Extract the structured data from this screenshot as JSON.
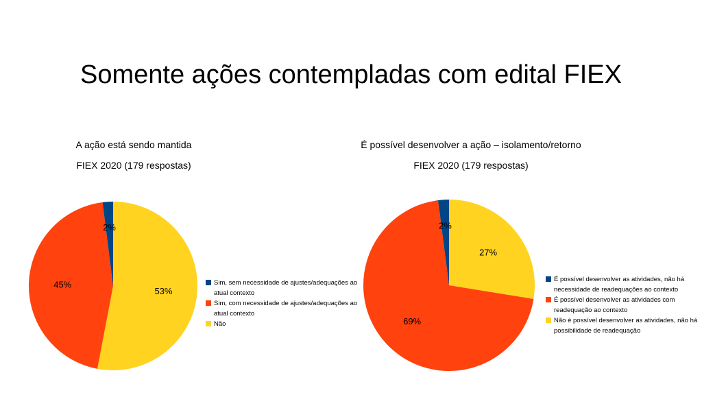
{
  "title": "Somente ações contempladas com edital FIEX",
  "chart_data": [
    {
      "type": "pie",
      "title": "A ação está sendo mantida",
      "subtitle": "FIEX 2020 (179 respostas)",
      "categories": [
        "Sim, sem necessidade de ajustes/adequações ao atual contexto",
        "Sim, com necessidade de ajustes/adequações ao atual contexto",
        "Não"
      ],
      "values": [
        2,
        45,
        53
      ],
      "labels": [
        "2%",
        "45%",
        "53%"
      ],
      "colors": [
        "#004586",
        "#ff420e",
        "#ffd320"
      ],
      "legend": "right"
    },
    {
      "type": "pie",
      "title": "É possível desenvolver  a ação – isolamento/retorno",
      "subtitle": "FIEX 2020 (179 respostas)",
      "categories": [
        "É possível desenvolver as atividades, não há necessidade de readequações ao contexto",
        "É possível desenvolver as atividades com readequação ao contexto",
        "Não é possível desenvolver as atividades, não há possibilidade de readequação"
      ],
      "values": [
        2,
        69,
        27
      ],
      "labels": [
        "2%",
        "69%",
        "27%"
      ],
      "colors": [
        "#004586",
        "#ff420e",
        "#ffd320"
      ],
      "legend": "right"
    }
  ]
}
